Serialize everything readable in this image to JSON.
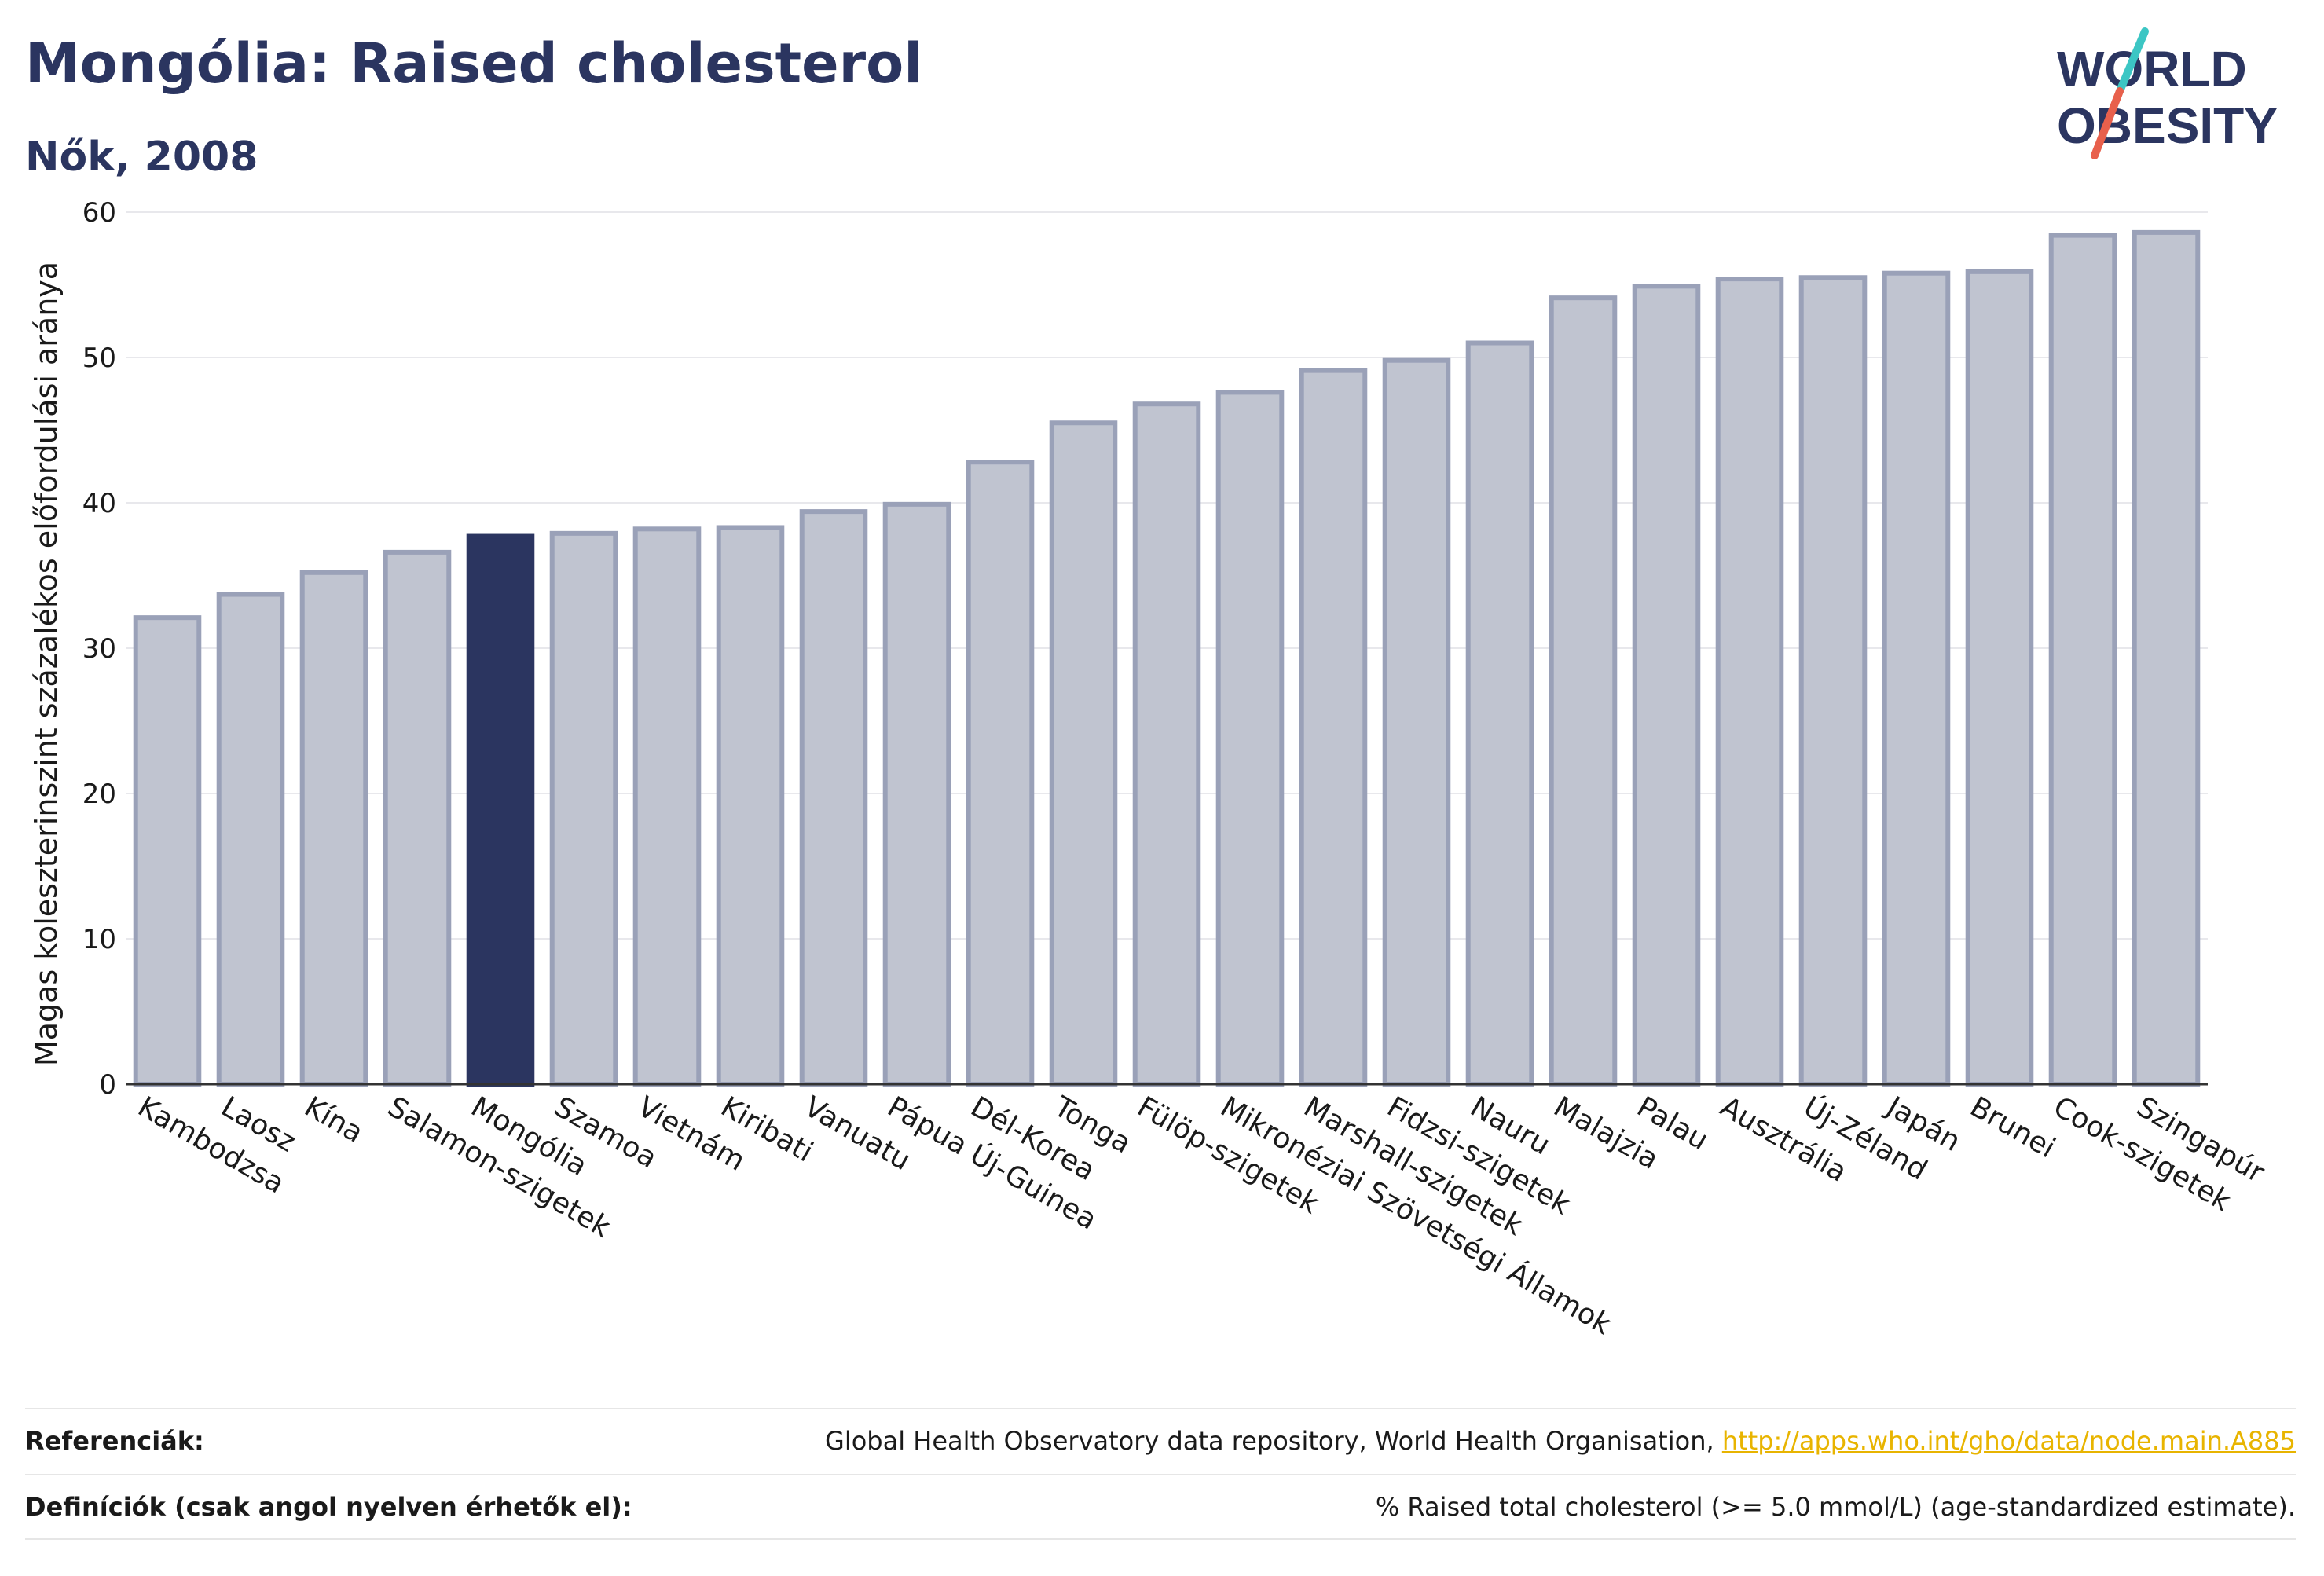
{
  "header": {
    "title": "Mongólia: Raised cholesterol",
    "subtitle": "Nők, 2008"
  },
  "logo": {
    "line1": "WORLD",
    "line2": "OBESITY",
    "accent_top": "#3cc6c4",
    "accent_bottom": "#e8604c",
    "text_color": "#2b3560"
  },
  "colors": {
    "bar": "#c0c4d0",
    "bar_border": "#9aa1b8",
    "highlight": "#2b3560"
  },
  "chart_data": {
    "type": "bar",
    "title": "Mongólia: Raised cholesterol",
    "subtitle": "Nők, 2008",
    "ylabel": "Magas koleszterinszint százalékos előfordulási aránya",
    "xlabel": "",
    "ylim": [
      0,
      60
    ],
    "yticks": [
      0,
      10,
      20,
      30,
      40,
      50,
      60
    ],
    "grid": true,
    "highlight": "Mongólia",
    "categories": [
      "Kambodzsa",
      "Laosz",
      "Kína",
      "Salamon-szigetek",
      "Mongólia",
      "Szamoa",
      "Vietnám",
      "Kiribati",
      "Vanuatu",
      "Pápua Új-Guinea",
      "Dél-Korea",
      "Tonga",
      "Fülöp-szigetek",
      "Mikronéziai Szövetségi Államok",
      "Marshall-szigetek",
      "Fidzsi-szigetek",
      "Nauru",
      "Malajzia",
      "Palau",
      "Ausztrália",
      "Új-Zéland",
      "Japán",
      "Brunei",
      "Cook-szigetek",
      "Szingapúr"
    ],
    "values": [
      32.1,
      33.7,
      35.2,
      36.6,
      37.7,
      37.9,
      38.2,
      38.3,
      39.4,
      39.9,
      42.8,
      45.5,
      46.8,
      47.6,
      49.1,
      49.8,
      51.0,
      54.1,
      54.9,
      55.4,
      55.5,
      55.8,
      55.9,
      58.4,
      58.6
    ]
  },
  "footer": {
    "references_label": "Referenciák:",
    "references_text": "Global Health Observatory data repository, World Health Organisation, ",
    "references_link": "http://apps.who.int/gho/data/node.main.A885",
    "definitions_label": "Definíciók (csak angol nyelven érhetők el):",
    "definitions_text": "% Raised total cholesterol (>= 5.0 mmol/L) (age-standardized estimate)."
  }
}
